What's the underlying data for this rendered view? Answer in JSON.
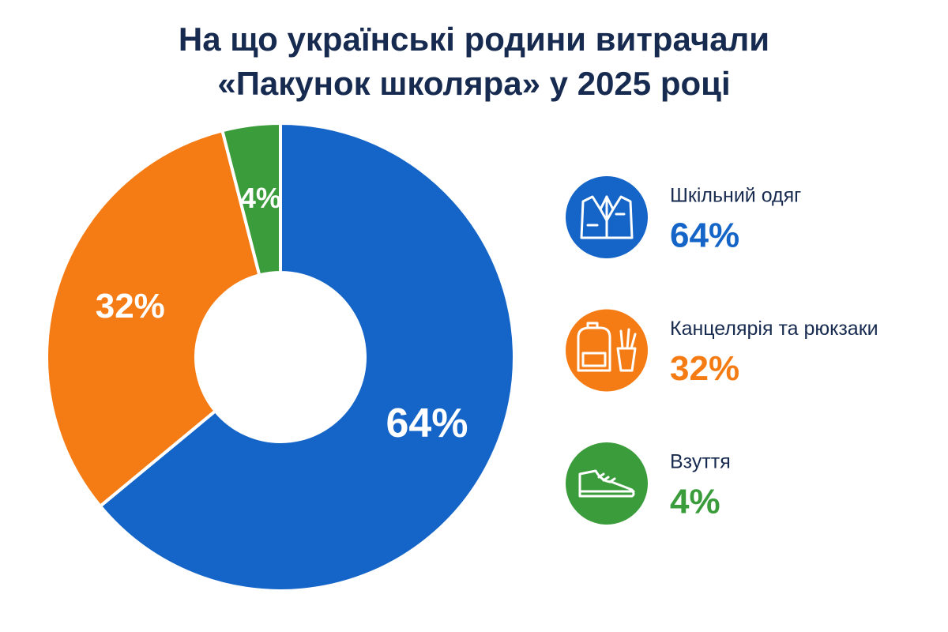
{
  "chart_data": {
    "type": "pie",
    "title": "На що українські родини витрачали «Пакунок школяра» у 2025 році",
    "categories": [
      "Шкільний одяг",
      "Канцелярія та рюкзаки",
      "Взуття"
    ],
    "values": [
      64,
      32,
      4
    ],
    "value_labels": [
      "64%",
      "32%",
      "4%"
    ],
    "colors": [
      "#1565c8",
      "#f57c14",
      "#3a9c3a"
    ]
  }
}
